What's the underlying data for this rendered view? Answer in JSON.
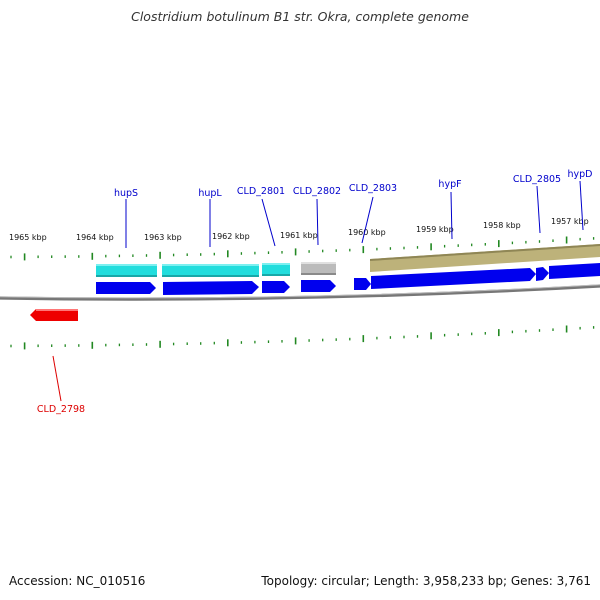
{
  "title": "Clostridium botulinum B1 str. Okra, complete genome",
  "footer": {
    "accession": "Accession: NC_010516",
    "summary": "Topology: circular; Length: 3,958,233 bp; Genes: 3,761"
  },
  "colors": {
    "cds_forward": "#0000ee",
    "cds_reverse": "#ee0000",
    "operon_cyan": "#22dddd",
    "pseudo_gray": "#bbbbbb",
    "region_olive": "#bdb27a",
    "label_forward": "#0000cc",
    "label_reverse": "#dd0000",
    "tick_green": "#228822",
    "backbone": "#777777"
  },
  "scale_labels": [
    {
      "text": "1965 kbp"
    },
    {
      "text": "1964 kbp"
    },
    {
      "text": "1963 kbp"
    },
    {
      "text": "1962 kbp"
    },
    {
      "text": "1961 kbp"
    },
    {
      "text": "1960 kbp"
    },
    {
      "text": "1959 kbp"
    },
    {
      "text": "1958 kbp"
    },
    {
      "text": "1957 kbp"
    }
  ],
  "gene_labels": [
    {
      "text": "hupS",
      "strand": "forward"
    },
    {
      "text": "hupL",
      "strand": "forward"
    },
    {
      "text": "CLD_2801",
      "strand": "forward"
    },
    {
      "text": "CLD_2802",
      "strand": "forward"
    },
    {
      "text": "CLD_2803",
      "strand": "forward"
    },
    {
      "text": "hypF",
      "strand": "forward"
    },
    {
      "text": "CLD_2805",
      "strand": "forward"
    },
    {
      "text": "hypD",
      "strand": "forward"
    },
    {
      "text": "CLD_2798",
      "strand": "reverse"
    }
  ]
}
